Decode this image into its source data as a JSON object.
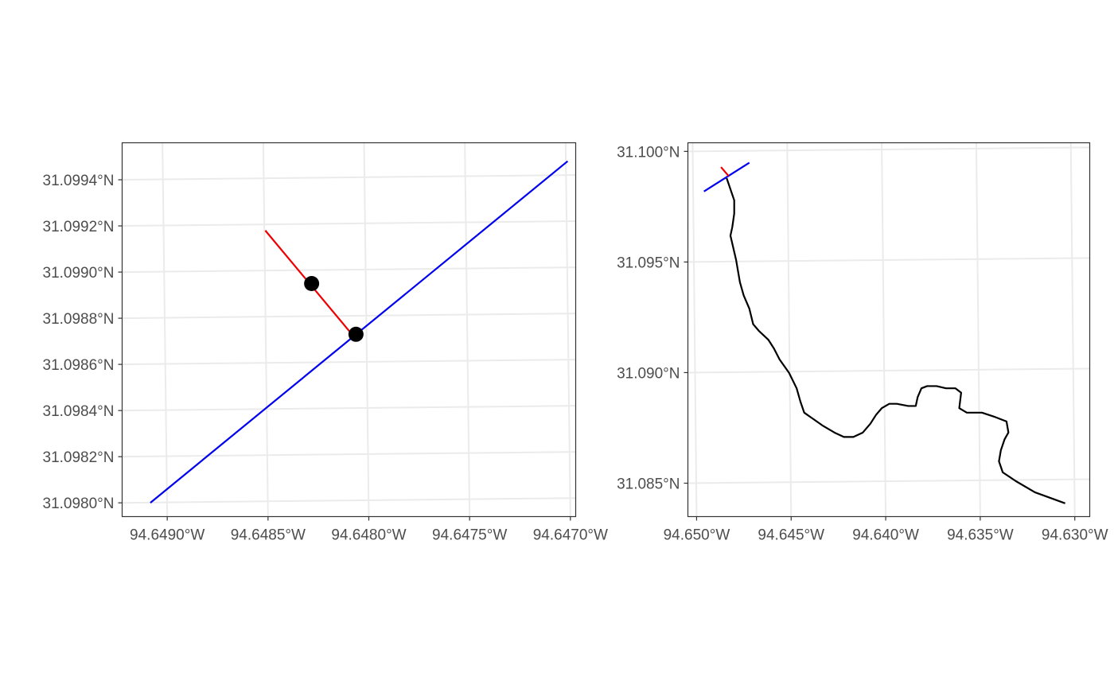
{
  "chart_data": [
    {
      "type": "line",
      "panel": "left",
      "xlim": [
        -94.6492,
        -94.64695
      ],
      "ylim": [
        31.09793,
        31.09955
      ],
      "x_ticks": [
        {
          "value": -94.649,
          "label": "94.6490°W"
        },
        {
          "value": -94.6485,
          "label": "94.6485°W"
        },
        {
          "value": -94.648,
          "label": "94.6480°W"
        },
        {
          "value": -94.6475,
          "label": "94.6475°W"
        },
        {
          "value": -94.647,
          "label": "94.6470°W"
        }
      ],
      "y_ticks": [
        {
          "value": 31.098,
          "label": "31.0980°N"
        },
        {
          "value": 31.0982,
          "label": "31.0982°N"
        },
        {
          "value": 31.0984,
          "label": "31.0984°N"
        },
        {
          "value": 31.0986,
          "label": "31.0986°N"
        },
        {
          "value": 31.0988,
          "label": "31.0988°N"
        },
        {
          "value": 31.099,
          "label": "31.0990°N"
        },
        {
          "value": 31.0992,
          "label": "31.0992°N"
        },
        {
          "value": 31.0994,
          "label": "31.0994°N"
        }
      ],
      "grid": true,
      "series": [
        {
          "color": "#0000ee",
          "points": [
            [
              -94.64906,
              31.09799
            ],
            [
              -94.64699,
              31.09947
            ]
          ]
        },
        {
          "color": "#ee0000",
          "points": [
            [
              -94.64849,
              31.09917
            ],
            [
              -94.64806,
              31.09872
            ]
          ]
        }
      ],
      "markers": {
        "color": "#000000",
        "points": [
          [
            -94.64826,
            31.09894
          ],
          [
            -94.64804,
            31.09872
          ]
        ]
      }
    },
    {
      "type": "line",
      "panel": "right",
      "xlim": [
        -94.65025,
        -94.629
      ],
      "ylim": [
        31.0834,
        31.1003
      ],
      "x_ticks": [
        {
          "value": -94.65,
          "label": "94.650°W"
        },
        {
          "value": -94.645,
          "label": "94.645°W"
        },
        {
          "value": -94.64,
          "label": "94.640°W"
        },
        {
          "value": -94.635,
          "label": "94.635°W"
        },
        {
          "value": -94.63,
          "label": "94.630°W"
        }
      ],
      "y_ticks": [
        {
          "value": 31.085,
          "label": "31.085°N"
        },
        {
          "value": 31.09,
          "label": "31.090°N"
        },
        {
          "value": 31.095,
          "label": "31.095°N"
        },
        {
          "value": 31.1,
          "label": "31.100°N"
        }
      ],
      "grid": true,
      "series": [
        {
          "color": "#000000",
          "points": [
            [
              -94.6482,
              31.0987
            ],
            [
              -94.6478,
              31.0977
            ],
            [
              -94.6478,
              31.0971
            ],
            [
              -94.6479,
              31.0965
            ],
            [
              -94.648,
              31.0961
            ],
            [
              -94.6477,
              31.095
            ],
            [
              -94.6475,
              31.094
            ],
            [
              -94.6473,
              31.0934
            ],
            [
              -94.647,
              31.0928
            ],
            [
              -94.6468,
              31.0921
            ],
            [
              -94.6465,
              31.0918
            ],
            [
              -94.646,
              31.0914
            ],
            [
              -94.6457,
              31.091
            ],
            [
              -94.6454,
              31.0905
            ],
            [
              -94.6449,
              31.0899
            ],
            [
              -94.6445,
              31.0892
            ],
            [
              -94.6443,
              31.0886
            ],
            [
              -94.6441,
              31.0881
            ],
            [
              -94.6436,
              31.0878
            ],
            [
              -94.6431,
              31.0875
            ],
            [
              -94.6425,
              31.0872
            ],
            [
              -94.642,
              31.087
            ],
            [
              -94.6415,
              31.087
            ],
            [
              -94.641,
              31.0872
            ],
            [
              -94.6406,
              31.0876
            ],
            [
              -94.6403,
              31.088
            ],
            [
              -94.64,
              31.0883
            ],
            [
              -94.6396,
              31.0885
            ],
            [
              -94.6392,
              31.0885
            ],
            [
              -94.6386,
              31.0884
            ],
            [
              -94.6382,
              31.0884
            ],
            [
              -94.6381,
              31.0888
            ],
            [
              -94.6379,
              31.0892
            ],
            [
              -94.6376,
              31.0893
            ],
            [
              -94.6371,
              31.0893
            ],
            [
              -94.6366,
              31.0892
            ],
            [
              -94.6361,
              31.0892
            ],
            [
              -94.6358,
              31.089
            ],
            [
              -94.6359,
              31.0883
            ],
            [
              -94.6355,
              31.0881
            ],
            [
              -94.6347,
              31.0881
            ],
            [
              -94.634,
              31.0879
            ],
            [
              -94.6334,
              31.0877
            ],
            [
              -94.6333,
              31.0872
            ],
            [
              -94.6335,
              31.0869
            ],
            [
              -94.6337,
              31.0864
            ],
            [
              -94.6338,
              31.0859
            ],
            [
              -94.6336,
              31.0854
            ],
            [
              -94.6329,
              31.085
            ],
            [
              -94.6319,
              31.0845
            ],
            [
              -94.6303,
              31.084
            ]
          ]
        },
        {
          "color": "#0000ee",
          "points": [
            [
              -94.6494,
              31.0981
            ],
            [
              -94.647,
              31.0994
            ]
          ]
        },
        {
          "color": "#ee0000",
          "points": [
            [
              -94.6485,
              31.0992
            ],
            [
              -94.6481,
              31.0988
            ]
          ]
        }
      ]
    }
  ]
}
